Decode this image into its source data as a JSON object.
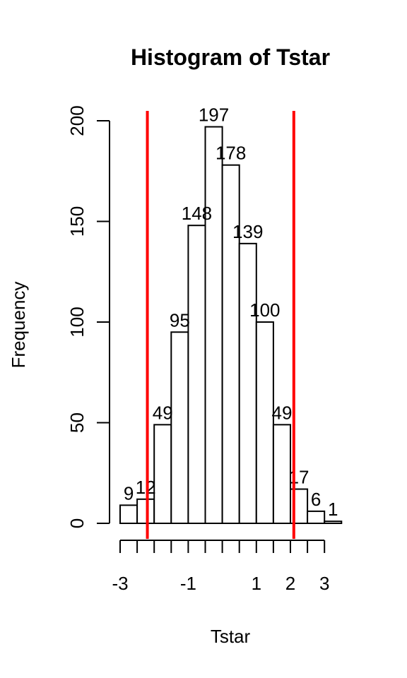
{
  "chart_data": {
    "type": "bar",
    "title": "Histogram of Tstar",
    "xlabel": "Tstar",
    "ylabel": "Frequency",
    "bins": [
      {
        "x0": -3.0,
        "x1": -2.5,
        "count": 9
      },
      {
        "x0": -2.5,
        "x1": -2.0,
        "count": 12
      },
      {
        "x0": -2.0,
        "x1": -1.5,
        "count": 49
      },
      {
        "x0": -1.5,
        "x1": -1.0,
        "count": 95
      },
      {
        "x0": -1.0,
        "x1": -0.5,
        "count": 148
      },
      {
        "x0": -0.5,
        "x1": 0.0,
        "count": 197
      },
      {
        "x0": 0.0,
        "x1": 0.5,
        "count": 178
      },
      {
        "x0": 0.5,
        "x1": 1.0,
        "count": 139
      },
      {
        "x0": 1.0,
        "x1": 1.5,
        "count": 100
      },
      {
        "x0": 1.5,
        "x1": 2.0,
        "count": 49
      },
      {
        "x0": 2.0,
        "x1": 2.5,
        "count": 17
      },
      {
        "x0": 2.5,
        "x1": 3.0,
        "count": 6
      },
      {
        "x0": 3.0,
        "x1": 3.5,
        "count": 1
      }
    ],
    "xlim": [
      -3,
      3.5
    ],
    "ylim": [
      0,
      200
    ],
    "x_ticks": [
      -3,
      -2.5,
      -2,
      -1.5,
      -1,
      -0.5,
      0,
      0.5,
      1,
      1.5,
      2,
      2.5,
      3
    ],
    "x_tick_labels": [
      "-3",
      "",
      "",
      "",
      "-1",
      "",
      "",
      "",
      "1",
      "",
      "2",
      "",
      "3"
    ],
    "y_ticks": [
      0,
      50,
      100,
      150,
      200
    ],
    "y_tick_labels": [
      "0",
      "50",
      "100",
      "150",
      "200"
    ],
    "reference_lines": [
      {
        "x": -2.2,
        "color": "#ff0000"
      },
      {
        "x": 2.1,
        "color": "#ff0000"
      }
    ],
    "bar_fill": "#ffffff",
    "bar_stroke": "#000000",
    "grid": false,
    "legend": "none"
  }
}
